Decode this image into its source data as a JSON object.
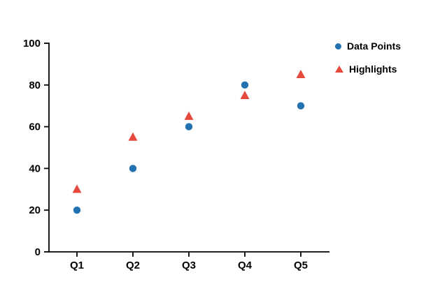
{
  "colors": {
    "background": "#ffffff",
    "axis": "#000000",
    "text": "#000000",
    "series_blue": "#2272b2",
    "series_red": "#e4493b"
  },
  "legend": {
    "position": "top-right",
    "items": [
      {
        "label": "Data Points",
        "marker": "circle-marker-icon"
      },
      {
        "label": "Highlights",
        "marker": "triangle-marker-icon"
      }
    ]
  },
  "chart_data": {
    "type": "scatter",
    "title": "",
    "xlabel": "",
    "ylabel": "",
    "categories": [
      "Q1",
      "Q2",
      "Q3",
      "Q4",
      "Q5"
    ],
    "series": [
      {
        "name": "Data Points",
        "marker": "circle",
        "color": "#2272b2",
        "values": [
          20,
          40,
          60,
          80,
          70
        ]
      },
      {
        "name": "Highlights",
        "marker": "triangle",
        "color": "#e4493b",
        "values": [
          30,
          55,
          65,
          75,
          85
        ]
      }
    ],
    "ylim": [
      0,
      100
    ],
    "yticks": [
      0,
      20,
      40,
      60,
      80,
      100
    ],
    "grid": false,
    "legend_position": "top-right"
  }
}
